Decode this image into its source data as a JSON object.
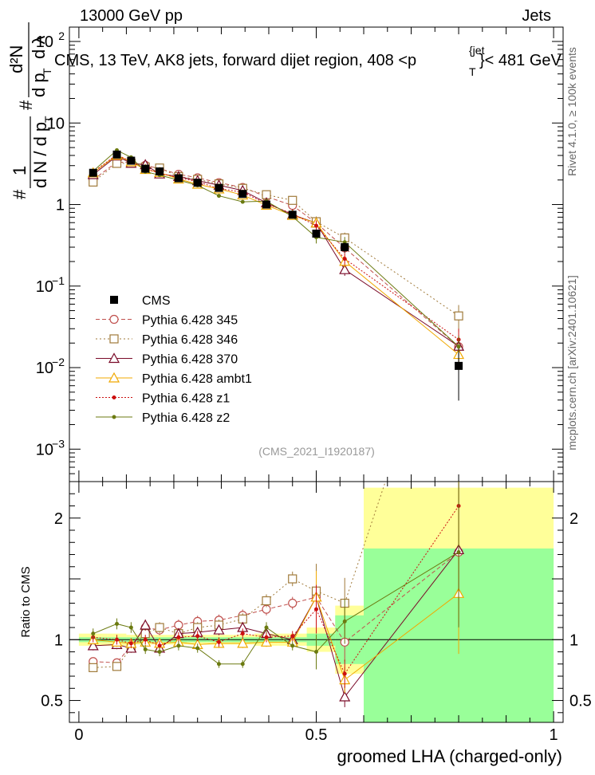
{
  "header": {
    "left": "13000 GeV pp",
    "right": "Jets",
    "title": "CMS, 13 TeV, AK8 jets, forward dijet region, 408 <p",
    "title_sup": "{jet",
    "title_sub": "T",
    "title_tail": "}< 481 GeV"
  },
  "side_labels": {
    "rivet": "Rivet 4.1.0, ≥ 100k events",
    "mcplots": "mcplots.cern.ch [arXiv:2401.10621]"
  },
  "watermark": "(CMS_2021_I1920187)",
  "ylabel_main": {
    "hash1": "#",
    "one": "1",
    "dN": "d N / d p",
    "T": "T",
    "hash2": "#",
    "d2N": "d²N",
    "dpT": "d p",
    "T2": "T",
    "dlambda": "d λ"
  },
  "ratio_ylabel": "Ratio to CMS",
  "xlabel": "groomed LHA (charged-only)",
  "colors": {
    "cms": "#000000",
    "p345": "#c0504d",
    "p346": "#a07a3a",
    "p370": "#7a0a28",
    "ambt1": "#f0a800",
    "z1": "#cc1010",
    "z2": "#6b7a10",
    "band_green": "#99ff99",
    "band_yellow": "#ffff99"
  },
  "chart_data": {
    "type": "line",
    "xlim": [
      -0.02,
      1.02
    ],
    "ylim_main": [
      0.0004,
      150
    ],
    "ylog_main": true,
    "ylim_ratio": [
      0.32,
      2.3
    ],
    "main_yticks": [
      {
        "v": 0.001,
        "b": "10",
        "e": "−3"
      },
      {
        "v": 0.01,
        "b": "10",
        "e": "−2"
      },
      {
        "v": 0.1,
        "b": "10",
        "e": "−1"
      },
      {
        "v": 1,
        "b": "1",
        "e": ""
      },
      {
        "v": 10,
        "b": "10",
        "e": ""
      },
      {
        "v": 100,
        "b": "10",
        "e": "2"
      }
    ],
    "x_ticks": [
      {
        "v": 0,
        "t": "0"
      },
      {
        "v": 0.5,
        "t": "0.5"
      },
      {
        "v": 1,
        "t": "1"
      }
    ],
    "ratio_ticks": [
      {
        "v": 0.5,
        "t": "0.5"
      },
      {
        "v": 1,
        "t": "1"
      },
      {
        "v": 2,
        "t": "2"
      }
    ],
    "x": [
      0.03,
      0.08,
      0.11,
      0.14,
      0.17,
      0.21,
      0.25,
      0.295,
      0.345,
      0.395,
      0.45,
      0.5,
      0.56,
      0.8
    ],
    "bin_edges": [
      0.0,
      0.06,
      0.1,
      0.12,
      0.16,
      0.19,
      0.23,
      0.27,
      0.32,
      0.37,
      0.42,
      0.48,
      0.54,
      0.6,
      1.0
    ],
    "data": {
      "name": "CMS",
      "values": [
        2.45,
        4.1,
        3.45,
        2.75,
        2.55,
        2.1,
        1.85,
        1.6,
        1.35,
        1.0,
        0.75,
        0.44,
        0.3,
        0.0105
      ],
      "stat_ratio": [
        0.02,
        0.02,
        0.02,
        0.02,
        0.02,
        0.02,
        0.02,
        0.02,
        0.02,
        0.02,
        0.02,
        0.05,
        0.2,
        0.75
      ],
      "tot_ratio": [
        0.05,
        0.05,
        0.04,
        0.04,
        0.04,
        0.04,
        0.04,
        0.04,
        0.04,
        0.05,
        0.05,
        0.1,
        0.28,
        1.25
      ]
    },
    "series": [
      {
        "name": "Pythia 6.428 345",
        "key": "p345",
        "marker": "circle",
        "dash": "5,3",
        "ratio": [
          0.82,
          0.81,
          0.95,
          1.1,
          1.08,
          1.12,
          1.15,
          1.16,
          1.2,
          1.25,
          1.3,
          1.35,
          0.98,
          1.72
        ]
      },
      {
        "name": "Pythia 6.428 346",
        "key": "p346",
        "marker": "square",
        "dash": "2,3",
        "ratio": [
          0.77,
          0.78,
          0.93,
          1.05,
          1.1,
          1.05,
          1.1,
          1.12,
          1.17,
          1.32,
          1.5,
          1.4,
          1.3,
          4.1
        ]
      },
      {
        "name": "Pythia 6.428 370",
        "key": "p370",
        "marker": "triangle",
        "dash": "",
        "ratio": [
          0.95,
          0.96,
          0.93,
          1.12,
          0.93,
          1.05,
          1.06,
          1.08,
          1.1,
          1.05,
          1.0,
          1.35,
          0.53,
          1.74
        ]
      },
      {
        "name": "Pythia 6.428 ambt1",
        "key": "ambt1",
        "marker": "triangle",
        "dash": "",
        "ratio": [
          1.0,
          0.98,
          0.97,
          0.98,
          0.97,
          0.98,
          0.96,
          0.97,
          0.97,
          0.98,
          0.98,
          1.35,
          0.67,
          1.38
        ]
      },
      {
        "name": "Pythia 6.428 z1",
        "key": "z1",
        "marker": "dot",
        "dash": "2,2",
        "ratio": [
          1.02,
          1.0,
          0.97,
          1.0,
          0.95,
          1.02,
          1.03,
          0.98,
          1.05,
          1.02,
          1.03,
          1.25,
          0.72,
          2.1
        ]
      },
      {
        "name": "Pythia 6.428 z2",
        "key": "z2",
        "marker": "dot",
        "dash": "",
        "ratio": [
          1.05,
          1.13,
          1.1,
          0.92,
          0.9,
          0.95,
          0.93,
          0.8,
          0.8,
          1.1,
          0.95,
          0.9,
          1.15,
          1.72
        ]
      }
    ]
  }
}
